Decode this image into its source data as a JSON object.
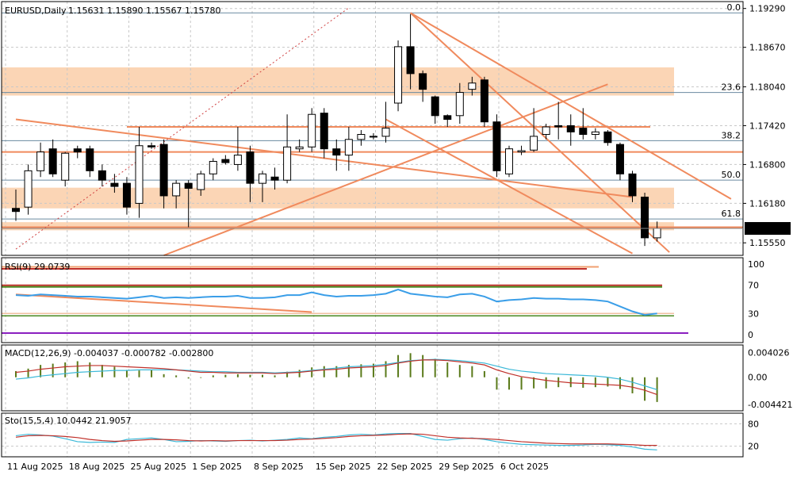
{
  "header": {
    "symbol": "EURUSD,Daily",
    "ohlc": "1.15631 1.15890 1.15567 1.15780"
  },
  "colors": {
    "zone": "#fbd5b5",
    "trend": "#f08a5d",
    "rsi": "#3a9ee8",
    "macd_signal": "#c0302a",
    "macd_hist": "#5a7a1a",
    "stoch_main": "#3ab8d8",
    "stoch_signal": "#c0302a",
    "price_label_bg": "#000000"
  },
  "price_axis": {
    "labels": [
      "1.19290",
      "1.18670",
      "1.18040",
      "1.17420",
      "1.16800",
      "1.16180",
      "1.15550"
    ],
    "current_price": "1.15780"
  },
  "fib_labels": [
    "0.0",
    "23.6",
    "38.2",
    "50.0",
    "61.8"
  ],
  "date_labels": [
    "11 Aug 2025",
    "18 Aug 2025",
    "25 Aug 2025",
    "1 Sep 2025",
    "8 Sep 2025",
    "15 Sep 2025",
    "22 Sep 2025",
    "29 Sep 2025",
    "6 Oct 2025"
  ],
  "rsi": {
    "title": "RSI(9) 29.0739",
    "levels": [
      "100",
      "70",
      "30",
      "0"
    ]
  },
  "macd": {
    "title": "MACD(12,26,9) -0.004037 -0.000782 -0.002800",
    "levels": [
      "0.004026",
      "0.00",
      "-0.004421"
    ]
  },
  "stoch": {
    "title": "Sto(15,5,4) 10.0442 21.9057",
    "levels": [
      "80",
      "20"
    ]
  },
  "chart_data": {
    "type": "candlestick",
    "title": "EURUSD,Daily",
    "ylim": [
      1.1535,
      1.194
    ],
    "candles": [
      {
        "o": 1.161,
        "h": 1.164,
        "l": 1.159,
        "c": 1.1605
      },
      {
        "o": 1.1612,
        "h": 1.168,
        "l": 1.16,
        "c": 1.167
      },
      {
        "o": 1.167,
        "h": 1.1715,
        "l": 1.166,
        "c": 1.17
      },
      {
        "o": 1.1705,
        "h": 1.172,
        "l": 1.166,
        "c": 1.1665
      },
      {
        "o": 1.1655,
        "h": 1.17,
        "l": 1.1645,
        "c": 1.1698
      },
      {
        "o": 1.1705,
        "h": 1.171,
        "l": 1.169,
        "c": 1.17
      },
      {
        "o": 1.1705,
        "h": 1.171,
        "l": 1.166,
        "c": 1.167
      },
      {
        "o": 1.167,
        "h": 1.168,
        "l": 1.1645,
        "c": 1.1655
      },
      {
        "o": 1.165,
        "h": 1.1665,
        "l": 1.1635,
        "c": 1.1645
      },
      {
        "o": 1.165,
        "h": 1.166,
        "l": 1.16,
        "c": 1.1612
      },
      {
        "o": 1.1618,
        "h": 1.174,
        "l": 1.1595,
        "c": 1.171
      },
      {
        "o": 1.171,
        "h": 1.1715,
        "l": 1.1705,
        "c": 1.1708
      },
      {
        "o": 1.1712,
        "h": 1.172,
        "l": 1.161,
        "c": 1.163
      },
      {
        "o": 1.163,
        "h": 1.1655,
        "l": 1.161,
        "c": 1.165
      },
      {
        "o": 1.165,
        "h": 1.1655,
        "l": 1.158,
        "c": 1.1642
      },
      {
        "o": 1.164,
        "h": 1.167,
        "l": 1.163,
        "c": 1.1665
      },
      {
        "o": 1.1665,
        "h": 1.169,
        "l": 1.1655,
        "c": 1.1685
      },
      {
        "o": 1.1688,
        "h": 1.1695,
        "l": 1.168,
        "c": 1.1683
      },
      {
        "o": 1.168,
        "h": 1.174,
        "l": 1.167,
        "c": 1.1695
      },
      {
        "o": 1.17,
        "h": 1.171,
        "l": 1.162,
        "c": 1.165
      },
      {
        "o": 1.165,
        "h": 1.167,
        "l": 1.162,
        "c": 1.1665
      },
      {
        "o": 1.166,
        "h": 1.1675,
        "l": 1.164,
        "c": 1.1655
      },
      {
        "o": 1.1655,
        "h": 1.176,
        "l": 1.165,
        "c": 1.1708
      },
      {
        "o": 1.1705,
        "h": 1.172,
        "l": 1.17,
        "c": 1.1708
      },
      {
        "o": 1.1708,
        "h": 1.177,
        "l": 1.17,
        "c": 1.176
      },
      {
        "o": 1.1762,
        "h": 1.177,
        "l": 1.169,
        "c": 1.1705
      },
      {
        "o": 1.1705,
        "h": 1.172,
        "l": 1.167,
        "c": 1.1695
      },
      {
        "o": 1.1695,
        "h": 1.174,
        "l": 1.167,
        "c": 1.172
      },
      {
        "o": 1.172,
        "h": 1.1735,
        "l": 1.171,
        "c": 1.1728
      },
      {
        "o": 1.1725,
        "h": 1.173,
        "l": 1.172,
        "c": 1.1725
      },
      {
        "o": 1.1725,
        "h": 1.178,
        "l": 1.1715,
        "c": 1.1738
      },
      {
        "o": 1.1778,
        "h": 1.1878,
        "l": 1.1765,
        "c": 1.1868
      },
      {
        "o": 1.1868,
        "h": 1.192,
        "l": 1.18,
        "c": 1.1825
      },
      {
        "o": 1.1825,
        "h": 1.183,
        "l": 1.178,
        "c": 1.18
      },
      {
        "o": 1.1788,
        "h": 1.179,
        "l": 1.1745,
        "c": 1.1758
      },
      {
        "o": 1.1758,
        "h": 1.176,
        "l": 1.174,
        "c": 1.1752
      },
      {
        "o": 1.1758,
        "h": 1.181,
        "l": 1.1745,
        "c": 1.1795
      },
      {
        "o": 1.18,
        "h": 1.182,
        "l": 1.179,
        "c": 1.181
      },
      {
        "o": 1.1815,
        "h": 1.182,
        "l": 1.174,
        "c": 1.1748
      },
      {
        "o": 1.1748,
        "h": 1.176,
        "l": 1.166,
        "c": 1.167
      },
      {
        "o": 1.1665,
        "h": 1.171,
        "l": 1.166,
        "c": 1.1705
      },
      {
        "o": 1.17,
        "h": 1.171,
        "l": 1.1695,
        "c": 1.1702
      },
      {
        "o": 1.1703,
        "h": 1.177,
        "l": 1.17,
        "c": 1.1725
      },
      {
        "o": 1.1728,
        "h": 1.1745,
        "l": 1.172,
        "c": 1.174
      },
      {
        "o": 1.1742,
        "h": 1.178,
        "l": 1.172,
        "c": 1.174
      },
      {
        "o": 1.1742,
        "h": 1.176,
        "l": 1.171,
        "c": 1.1732
      },
      {
        "o": 1.1738,
        "h": 1.177,
        "l": 1.172,
        "c": 1.1728
      },
      {
        "o": 1.1728,
        "h": 1.1738,
        "l": 1.172,
        "c": 1.1732
      },
      {
        "o": 1.1732,
        "h": 1.1735,
        "l": 1.171,
        "c": 1.1715
      },
      {
        "o": 1.1712,
        "h": 1.1715,
        "l": 1.1655,
        "c": 1.1665
      },
      {
        "o": 1.1665,
        "h": 1.167,
        "l": 1.162,
        "c": 1.163
      },
      {
        "o": 1.1628,
        "h": 1.1635,
        "l": 1.155,
        "c": 1.1563
      },
      {
        "o": 1.1563,
        "h": 1.1589,
        "l": 1.1557,
        "c": 1.1578
      }
    ],
    "horizontal_levels": [
      1.174,
      1.17,
      1.158
    ],
    "zones": [
      [
        1.179,
        1.1835
      ],
      [
        1.161,
        1.1643
      ],
      [
        1.1575,
        1.1588
      ]
    ],
    "fib_levels": [
      {
        "label": "0.0",
        "price": 1.1922
      },
      {
        "label": "23.6",
        "price": 1.1795
      },
      {
        "label": "38.2",
        "price": 1.1718
      },
      {
        "label": "50.0",
        "price": 1.1655
      },
      {
        "label": "61.8",
        "price": 1.1593
      }
    ],
    "trendlines": [
      {
        "from": [
          0,
          1.1752
        ],
        "to": [
          50,
          1.1628
        ]
      },
      {
        "from": [
          12,
          1.1535
        ],
        "to": [
          48,
          1.1808
        ]
      },
      {
        "from": [
          32,
          1.1922
        ],
        "to": [
          53,
          1.154
        ]
      },
      {
        "from": [
          32,
          1.1922
        ],
        "to": [
          58,
          1.1625
        ]
      },
      {
        "from": [
          30,
          1.1752
        ],
        "to": [
          50,
          1.1538
        ]
      }
    ],
    "rsi": {
      "values": [
        56,
        55,
        57,
        56,
        55,
        54,
        54,
        53,
        52,
        51,
        53,
        55,
        52,
        53,
        52,
        53,
        54,
        54,
        55,
        52,
        52,
        53,
        56,
        56,
        60,
        56,
        54,
        55,
        55,
        56,
        58,
        64,
        58,
        56,
        54,
        53,
        57,
        58,
        54,
        47,
        49,
        50,
        52,
        51,
        51,
        50,
        50,
        49,
        47,
        40,
        33,
        28,
        30
      ],
      "trendline_from": [
        0,
        57
      ],
      "trendline_to": [
        24,
        32
      ],
      "levels": [
        70,
        30
      ]
    },
    "macd": {
      "hist": [
        0.001,
        0.0014,
        0.002,
        0.0022,
        0.0024,
        0.0026,
        0.0024,
        0.002,
        0.0017,
        0.0012,
        0.0011,
        0.0012,
        0.0005,
        0.0003,
        -0.0002,
        -0.0001,
        0.0003,
        0.0004,
        0.0005,
        0.0004,
        0.0004,
        0.0003,
        0.0009,
        0.0012,
        0.0016,
        0.0018,
        0.0018,
        0.002,
        0.0021,
        0.0022,
        0.0026,
        0.0036,
        0.0039,
        0.0036,
        0.003,
        0.0024,
        0.002,
        0.0018,
        0.001,
        -0.002,
        -0.002,
        -0.002,
        -0.0018,
        -0.0018,
        -0.0016,
        -0.0016,
        -0.0017,
        -0.0016,
        -0.0015,
        -0.0019,
        -0.0026,
        -0.0038,
        -0.004
      ],
      "signal": [
        0.0008,
        0.001,
        0.0013,
        0.0015,
        0.0017,
        0.0018,
        0.0019,
        0.0019,
        0.0018,
        0.0017,
        0.0016,
        0.0015,
        0.0014,
        0.0012,
        0.001,
        0.0008,
        0.0008,
        0.0007,
        0.0007,
        0.0007,
        0.0007,
        0.0006,
        0.0007,
        0.0008,
        0.001,
        0.0012,
        0.0013,
        0.0015,
        0.0016,
        0.0017,
        0.0019,
        0.0023,
        0.0026,
        0.0028,
        0.0028,
        0.0027,
        0.0025,
        0.0023,
        0.002,
        0.0012,
        0.0006,
        0.0001,
        -0.0002,
        -0.0005,
        -0.0007,
        -0.0009,
        -0.001,
        -0.0011,
        -0.0012,
        -0.0013,
        -0.0016,
        -0.0021,
        -0.0028
      ],
      "main": [
        -0.0003,
        -0.0001,
        0.0002,
        0.0004,
        0.0006,
        0.0008,
        0.0009,
        0.001,
        0.0011,
        0.0011,
        0.0012,
        0.0012,
        0.0012,
        0.0012,
        0.0011,
        0.001,
        0.0009,
        0.0009,
        0.0008,
        0.0008,
        0.0008,
        0.0007,
        0.0008,
        0.0009,
        0.0011,
        0.0013,
        0.0015,
        0.0017,
        0.0018,
        0.0019,
        0.0021,
        0.0024,
        0.0027,
        0.0028,
        0.0029,
        0.0028,
        0.0027,
        0.0025,
        0.0023,
        0.0018,
        0.0013,
        0.001,
        0.0008,
        0.0006,
        0.0005,
        0.0004,
        0.0003,
        0.0002,
        0.0,
        -0.0003,
        -0.0008,
        -0.0014,
        -0.002
      ]
    },
    "stoch": {
      "main": [
        48,
        52,
        50,
        47,
        40,
        32,
        30,
        31,
        30,
        38,
        40,
        42,
        38,
        32,
        33,
        35,
        34,
        33,
        35,
        36,
        34,
        36,
        38,
        42,
        40,
        44,
        46,
        50,
        52,
        50,
        53,
        54,
        54,
        46,
        38,
        36,
        40,
        42,
        38,
        32,
        28,
        25,
        24,
        23,
        22,
        22,
        23,
        25,
        24,
        22,
        18,
        12,
        10
      ],
      "signal": [
        44,
        48,
        49,
        48,
        46,
        43,
        38,
        35,
        33,
        34,
        36,
        38,
        38,
        37,
        35,
        34,
        35,
        34,
        35,
        35,
        35,
        35,
        36,
        38,
        39,
        41,
        43,
        46,
        48,
        49,
        50,
        52,
        53,
        52,
        48,
        44,
        42,
        41,
        40,
        38,
        35,
        32,
        30,
        28,
        27,
        26,
        26,
        26,
        26,
        25,
        24,
        22,
        22
      ]
    }
  }
}
